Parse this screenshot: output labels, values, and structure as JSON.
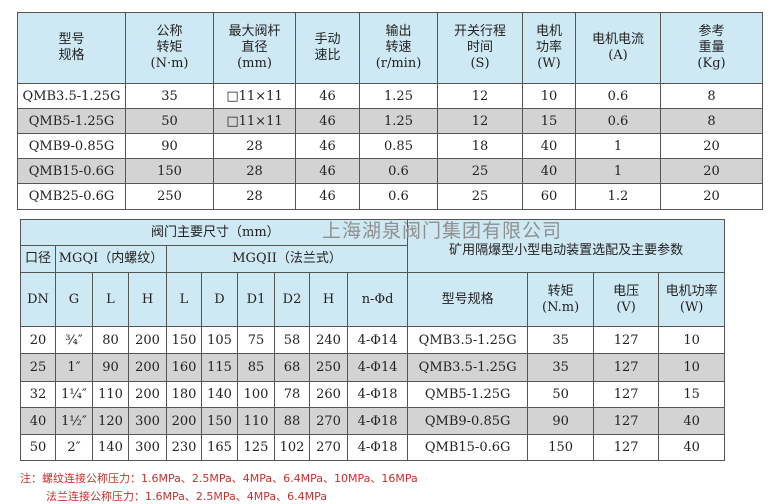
{
  "spec_table": {
    "headers": [
      "型号\n规格",
      "公称\n转矩\n(N·m)",
      "最大阀杆\n直径\n(mm)",
      "手动\n速比",
      "输出\n转速\n(r/min)",
      "开关行程\n时间\n(S)",
      "电机\n功率\n(W)",
      "电机电流\n(A)",
      "参考\n重量\n(Kg)"
    ],
    "rows": [
      [
        "QMB3.5-1.25G",
        "35",
        "□11×11",
        "46",
        "1.25",
        "12",
        "10",
        "0.6",
        "8"
      ],
      [
        "QMB5-1.25G",
        "50",
        "□11×11",
        "46",
        "1.25",
        "12",
        "15",
        "0.6",
        "8"
      ],
      [
        "QMB9-0.85G",
        "90",
        "28",
        "46",
        "0.85",
        "18",
        "40",
        "1",
        "20"
      ],
      [
        "QMB15-0.6G",
        "150",
        "28",
        "46",
        "0.6",
        "25",
        "40",
        "1",
        "20"
      ],
      [
        "QMB25-0.6G",
        "250",
        "28",
        "46",
        "0.6",
        "25",
        "60",
        "1.2",
        "20"
      ]
    ]
  },
  "watermark": "上海湖泉阀门集团有限公司",
  "dim_table": {
    "group_title": "阀门主要尺寸（mm）",
    "right_title": "矿用隔爆型小型电动装置选配及主要参数",
    "sub_caliber": "口径",
    "sub_mgqi": "MGQI（内螺纹）",
    "sub_mgqii": "MGQII（法兰式）",
    "headers": [
      "DN",
      "G",
      "L",
      "H",
      "L",
      "D",
      "D1",
      "D2",
      "H",
      "n-Φd",
      "型号规格",
      "转矩\n(N.m)",
      "电压\n(V)",
      "电机功率\n(W)"
    ],
    "rows": [
      [
        "20",
        "¾″",
        "80",
        "200",
        "150",
        "105",
        "75",
        "58",
        "240",
        "4-Φ14",
        "QMB3.5-1.25G",
        "35",
        "127",
        "10"
      ],
      [
        "25",
        "1″",
        "90",
        "200",
        "160",
        "115",
        "85",
        "68",
        "250",
        "4-Φ14",
        "QMB3.5-1.25G",
        "35",
        "127",
        "10"
      ],
      [
        "32",
        "1¼″",
        "110",
        "200",
        "180",
        "140",
        "100",
        "78",
        "260",
        "4-Φ18",
        "QMB5-1.25G",
        "50",
        "127",
        "15"
      ],
      [
        "40",
        "1½″",
        "120",
        "300",
        "200",
        "150",
        "110",
        "88",
        "270",
        "4-Φ18",
        "QMB9-0.85G",
        "90",
        "127",
        "40"
      ],
      [
        "50",
        "2″",
        "140",
        "300",
        "230",
        "165",
        "125",
        "102",
        "270",
        "4-Φ18",
        "QMB15-0.6G",
        "150",
        "127",
        "40"
      ]
    ]
  },
  "notes": {
    "line1": "注：螺纹连接公称压力：1.6MPa、2.5MPa、4MPa、6.4MPa、10MPa、16MPa",
    "line2": "法兰连接公称压力：1.6MPa、2.5MPa、4MPa、6.4MPa"
  },
  "colors": {
    "header_bg": "#cfe9f4",
    "alt_row_bg": "#d3d3d3",
    "note_text": "#c8302c"
  }
}
